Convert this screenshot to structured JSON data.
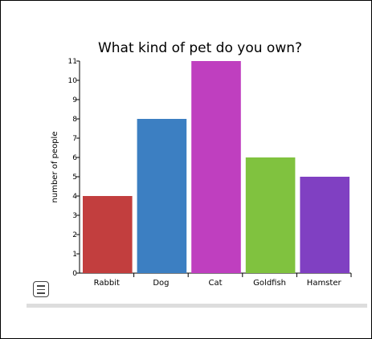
{
  "chart_data": {
    "type": "bar",
    "title": "What kind of pet do you own?",
    "ylabel": "number of people",
    "xlabel": "",
    "categories": [
      "Rabbit",
      "Dog",
      "Cat",
      "Goldfish",
      "Hamster"
    ],
    "values": [
      4,
      8,
      11,
      6,
      5
    ],
    "colors": [
      "#c23e3e",
      "#3c7fc2",
      "#bf3fbf",
      "#80c23f",
      "#8040c2"
    ],
    "ylim": [
      0,
      11
    ],
    "yticks": [
      0,
      1,
      2,
      3,
      4,
      5,
      6,
      7,
      8,
      9,
      10,
      11
    ],
    "grid": false,
    "legend": "none"
  },
  "ui": {
    "menu_icon": "hamburger-menu-icon"
  }
}
